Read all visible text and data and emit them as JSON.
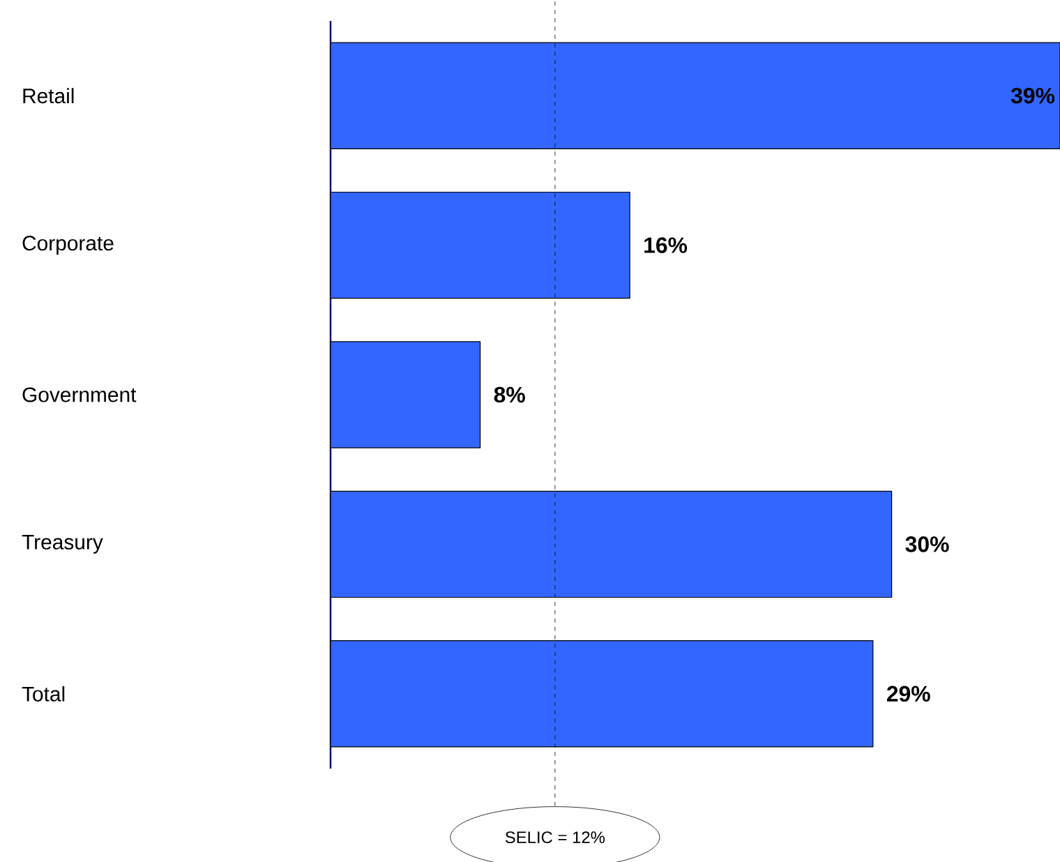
{
  "chart_data": {
    "type": "bar",
    "orientation": "horizontal",
    "categories": [
      "Retail",
      "Corporate",
      "Government",
      "Treasury",
      "Total"
    ],
    "values": [
      39,
      16,
      8,
      30,
      29
    ],
    "color": "#3366ff",
    "xlim": [
      0,
      39
    ],
    "tick_labels": "y",
    "data_labels": true,
    "value_labels": [
      "39%",
      "16%",
      "8%",
      "30%",
      "29%"
    ],
    "ref_lines": [
      {
        "axis": "x",
        "value": 12,
        "label": "SELIC = 12%",
        "line_style": "dashed",
        "color": "#000000"
      }
    ]
  }
}
